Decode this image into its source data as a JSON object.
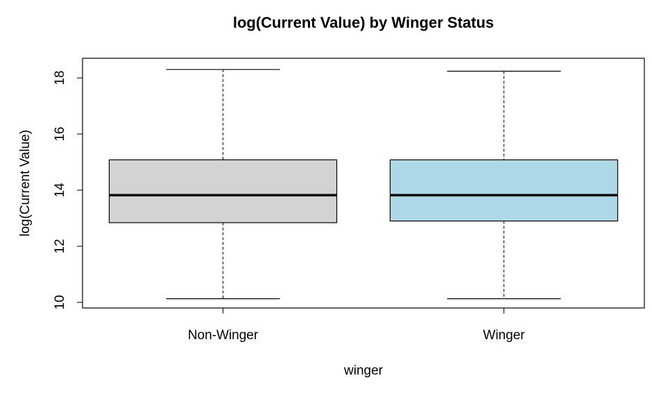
{
  "chart_data": {
    "type": "box",
    "title": "log(Current Value) by Winger Status",
    "xlabel": "winger",
    "ylabel": "log(Current Value)",
    "ylim": [
      9.8,
      18.7
    ],
    "yticks": [
      "10",
      "12",
      "14",
      "16",
      "18"
    ],
    "grid": false,
    "categories": [
      "Non-Winger",
      "Winger"
    ],
    "boxes": [
      {
        "category": "Non-Winger",
        "min": 10.13,
        "q1": 12.84,
        "median": 13.82,
        "q3": 15.08,
        "max": 18.3,
        "color": "#d3d3d3"
      },
      {
        "category": "Winger",
        "min": 10.13,
        "q1": 12.9,
        "median": 13.82,
        "q3": 15.08,
        "max": 18.24,
        "color": "#add8e6"
      }
    ]
  }
}
